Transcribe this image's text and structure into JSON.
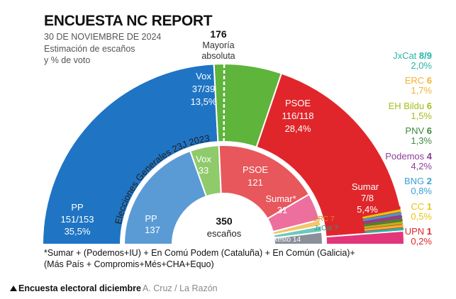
{
  "header": {
    "title": "ENCUESTA NC REPORT",
    "date": "30 DE NOVIEMBRE DE 2024",
    "subtitle_line1": "Estimación de escaños",
    "subtitle_line2": "y % de voto",
    "majority_number": "176",
    "majority_line1": "Mayoría",
    "majority_line2": "absoluta"
  },
  "chart_data": [
    {
      "type": "pie",
      "subtype": "parliament-hemicycle",
      "title": "ENCUESTA NC REPORT",
      "subtitle": "Estimación de escaños y % de voto",
      "total_seats": 350,
      "majority": 176,
      "parties": [
        {
          "name": "PP",
          "seats_text": "151/153",
          "pct_text": "35,5%",
          "seats": 152,
          "pct": 35.5,
          "color": "#1f74c4"
        },
        {
          "name": "Vox",
          "seats_text": "37/39",
          "pct_text": "13,5%",
          "seats": 38,
          "pct": 13.5,
          "color": "#5fb43c"
        },
        {
          "name": "PSOE",
          "seats_text": "116/118",
          "pct_text": "28,4%",
          "seats": 117,
          "pct": 28.4,
          "color": "#e0262b"
        },
        {
          "name": "Sumar",
          "seats_text": "7/8",
          "pct_text": "5,4%",
          "seats": 7.5,
          "pct": 5.4,
          "color": "#e3357a"
        },
        {
          "name": "JxCat",
          "seats_text": "8/9",
          "pct_text": "2,0%",
          "seats": 8.5,
          "pct": 2.0,
          "color": "#29b5a5"
        },
        {
          "name": "ERC",
          "seats_text": "6",
          "pct_text": "1,7%",
          "seats": 6,
          "pct": 1.7,
          "color": "#f3b233"
        },
        {
          "name": "EH Bildu",
          "seats_text": "6",
          "pct_text": "1,5%",
          "seats": 6,
          "pct": 1.5,
          "color": "#a6bd1e"
        },
        {
          "name": "PNV",
          "seats_text": "6",
          "pct_text": "1,3%",
          "seats": 6,
          "pct": 1.3,
          "color": "#3a8c3d"
        },
        {
          "name": "Podemos",
          "seats_text": "4",
          "pct_text": "4,2%",
          "seats": 4,
          "pct": 4.2,
          "color": "#8e3f98"
        },
        {
          "name": "BNG",
          "seats_text": "2",
          "pct_text": "0,8%",
          "seats": 2,
          "pct": 0.8,
          "color": "#3aa0d6"
        },
        {
          "name": "CC",
          "seats_text": "1",
          "pct_text": "0,5%",
          "seats": 1,
          "pct": 0.5,
          "color": "#e6c510"
        },
        {
          "name": "UPN",
          "seats_text": "1",
          "pct_text": "0,2%",
          "seats": 1,
          "pct": 0.2,
          "color": "#e0262b"
        }
      ]
    },
    {
      "type": "pie",
      "subtype": "parliament-hemicycle",
      "title": "Elecciones Generales 23J 2023",
      "center_total": "350",
      "center_label": "escaños",
      "parties": [
        {
          "name": "PP",
          "seats": 137,
          "color": "#5a9bd6"
        },
        {
          "name": "Vox",
          "seats": 33,
          "color": "#8fca6b"
        },
        {
          "name": "PSOE",
          "seats": 121,
          "color": "#e8575b"
        },
        {
          "name": "Sumar*",
          "seats": 31,
          "color": "#ec6f9d"
        },
        {
          "name": "ERC",
          "seats": 7,
          "color": "#f5c56a"
        },
        {
          "name": "JxCat",
          "seats": 7,
          "color": "#6cc8bc"
        },
        {
          "name": "Resto",
          "seats": 14,
          "color": "#8a8f99"
        }
      ]
    }
  ],
  "labels": {
    "outer_pp": [
      "PP",
      "151/153",
      "35,5%"
    ],
    "outer_vox": [
      "Vox",
      "37/39",
      "13,5%"
    ],
    "outer_psoe": [
      "PSOE",
      "116/118",
      "28,4%"
    ],
    "outer_sumar": [
      "Sumar",
      "7/8",
      "5,4%"
    ],
    "inner_pp": [
      "PP",
      "137"
    ],
    "inner_vox": [
      "Vox",
      "33"
    ],
    "inner_psoe": [
      "PSOE",
      "121"
    ],
    "inner_sumar": [
      "Sumar*",
      "31"
    ],
    "inner_erc": "ERC 7",
    "inner_jxcat": "JxCat 7",
    "inner_resto": "Resto 14",
    "inner_arc_title": "Elecciones Generales 23J 2023",
    "center_total": "350",
    "center_label": "escaños"
  },
  "side_list": [
    {
      "name": "JxCat",
      "seats": "8/9",
      "pct": "2,0%",
      "color": "#29b5a5"
    },
    {
      "name": "ERC",
      "seats": "6",
      "pct": "1,7%",
      "color": "#f3b233"
    },
    {
      "name": "EH Bildu",
      "seats": "6",
      "pct": "1,5%",
      "color": "#a6bd1e"
    },
    {
      "name": "PNV",
      "seats": "6",
      "pct": "1,3%",
      "color": "#3a8c3d"
    },
    {
      "name": "Podemos",
      "seats": "4",
      "pct": "4,2%",
      "color": "#8e3f98"
    },
    {
      "name": "BNG",
      "seats": "2",
      "pct": "0,8%",
      "color": "#3aa0d6"
    },
    {
      "name": "CC",
      "seats": "1",
      "pct": "0,5%",
      "color": "#e6c510"
    },
    {
      "name": "UPN",
      "seats": "1",
      "pct": "0,2%",
      "color": "#e0262b"
    }
  ],
  "footnote": {
    "line1": "*Sumar + (Podemos+IU) + En Comú Podem (Cataluña) + En Común (Galicia)+",
    "line2": "(Más País + Compromis+Més+CHA+Equo)"
  },
  "source": {
    "main": "Encuesta electoral diciembre",
    "author": "A. Cruz  /  La Razón"
  }
}
